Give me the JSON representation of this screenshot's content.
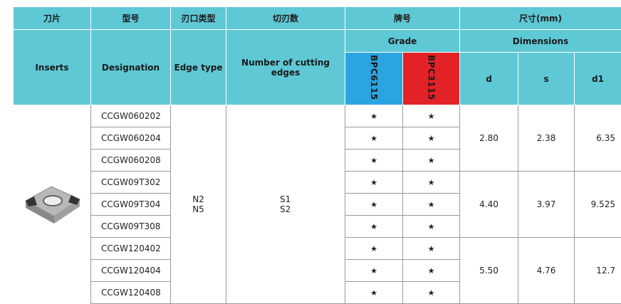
{
  "header": {
    "zh": [
      "刀片",
      "型号",
      "刃口类型",
      "切刃数",
      "牌号",
      "尺寸(mm)"
    ],
    "inserts": "Inserts",
    "designation": "Designation",
    "edge_type": "Edge type",
    "cutting_edges": "Number of cutting edges",
    "grade": "Grade",
    "dimensions": "Dimensions",
    "grades": [
      "BPC6115",
      "BPC3115"
    ],
    "dims": [
      "d",
      "s",
      "d1"
    ]
  },
  "rows": [
    {
      "designation": "CCGW060202",
      "stars": [
        "★",
        "★"
      ]
    },
    {
      "designation": "CCGW060204",
      "stars": [
        "★",
        "★"
      ]
    },
    {
      "designation": "CCGW060208",
      "stars": [
        "★",
        "★"
      ]
    },
    {
      "designation": "CCGW09T302",
      "stars": [
        "★",
        "★"
      ]
    },
    {
      "designation": "CCGW09T304",
      "stars": [
        "★",
        "★"
      ]
    },
    {
      "designation": "CCGW09T308",
      "stars": [
        "★",
        "★"
      ]
    },
    {
      "designation": "CCGW120402",
      "stars": [
        "★",
        "★"
      ]
    },
    {
      "designation": "CCGW120404",
      "stars": [
        "★",
        "★"
      ]
    },
    {
      "designation": "CCGW120408",
      "stars": [
        "★",
        "★"
      ]
    }
  ],
  "edge_type": [
    "N2",
    "N5"
  ],
  "cutting_edges": [
    "S1",
    "S2"
  ],
  "dim_groups": [
    [
      "2.80",
      "2.38",
      "6.35"
    ],
    [
      "4.40",
      "3.97",
      "9.525"
    ],
    [
      "5.50",
      "4.76",
      "12.7"
    ]
  ]
}
